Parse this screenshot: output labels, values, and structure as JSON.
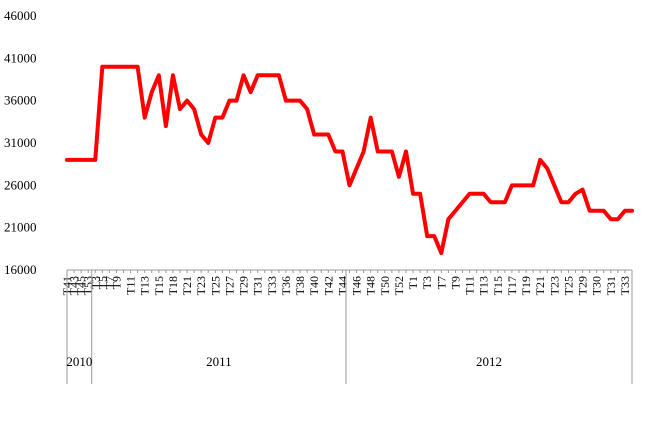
{
  "chart_data": {
    "type": "line",
    "title": "",
    "xlabel": "",
    "ylabel": "",
    "ylim": [
      16000,
      46000
    ],
    "yticks": [
      16000,
      21000,
      26000,
      31000,
      36000,
      41000,
      46000
    ],
    "grid": false,
    "line_color": "#ff0000",
    "year_groups": [
      {
        "label": "2010",
        "start": 0,
        "end": 3
      },
      {
        "label": "2011",
        "start": 4,
        "end": 39
      },
      {
        "label": "2012",
        "start": 40,
        "end": 73
      }
    ],
    "x_tick_labels": [
      {
        "i": 0,
        "label": "T41"
      },
      {
        "i": 1,
        "label": "T43"
      },
      {
        "i": 2,
        "label": "T45"
      },
      {
        "i": 3,
        "label": "T53"
      },
      {
        "i": 4,
        "label": "T3"
      },
      {
        "i": 5,
        "label": "T5"
      },
      {
        "i": 6,
        "label": "T7"
      },
      {
        "i": 7,
        "label": "T9"
      },
      {
        "i": 9,
        "label": "T11"
      },
      {
        "i": 11,
        "label": "T13"
      },
      {
        "i": 13,
        "label": "T15"
      },
      {
        "i": 15,
        "label": "T18"
      },
      {
        "i": 17,
        "label": "T21"
      },
      {
        "i": 19,
        "label": "T23"
      },
      {
        "i": 21,
        "label": "T25"
      },
      {
        "i": 23,
        "label": "T27"
      },
      {
        "i": 25,
        "label": "T29"
      },
      {
        "i": 27,
        "label": "T31"
      },
      {
        "i": 29,
        "label": "T33"
      },
      {
        "i": 31,
        "label": "T36"
      },
      {
        "i": 33,
        "label": "T38"
      },
      {
        "i": 35,
        "label": "T40"
      },
      {
        "i": 37,
        "label": "T42"
      },
      {
        "i": 39,
        "label": "T44"
      },
      {
        "i": 41,
        "label": "T46"
      },
      {
        "i": 43,
        "label": "T48"
      },
      {
        "i": 45,
        "label": "T50"
      },
      {
        "i": 47,
        "label": "T52"
      },
      {
        "i": 49,
        "label": "T1"
      },
      {
        "i": 51,
        "label": "T3"
      },
      {
        "i": 53,
        "label": "T7"
      },
      {
        "i": 55,
        "label": "T9"
      },
      {
        "i": 57,
        "label": "T11"
      },
      {
        "i": 59,
        "label": "T13"
      },
      {
        "i": 61,
        "label": "T15"
      },
      {
        "i": 63,
        "label": "T17"
      },
      {
        "i": 65,
        "label": "T19"
      },
      {
        "i": 67,
        "label": "T21"
      },
      {
        "i": 69,
        "label": "T23"
      },
      {
        "i": 71,
        "label": "T25"
      },
      {
        "i": 73,
        "label": "T29"
      },
      {
        "i": 75,
        "label": "T30"
      },
      {
        "i": 77,
        "label": "T31"
      },
      {
        "i": 79,
        "label": "T33"
      }
    ],
    "series": [
      {
        "values": [
          29000,
          29000,
          29000,
          29000,
          29000,
          40000,
          40000,
          40000,
          40000,
          40000,
          40000,
          34000,
          37000,
          39000,
          33000,
          39000,
          35000,
          36000,
          35000,
          32000,
          31000,
          34000,
          34000,
          36000,
          36000,
          39000,
          37000,
          39000,
          39000,
          39000,
          39000,
          36000,
          36000,
          36000,
          35000,
          32000,
          32000,
          32000,
          30000,
          30000,
          26000,
          28000,
          30000,
          34000,
          30000,
          30000,
          30000,
          27000,
          30000,
          25000,
          25000,
          20000,
          20000,
          18000,
          22000,
          23000,
          24000,
          25000,
          25000,
          25000,
          24000,
          24000,
          24000,
          26000,
          26000,
          26000,
          26000,
          29000,
          28000,
          26000,
          24000,
          24000,
          25000,
          25500,
          23000,
          23000,
          23000,
          22000,
          22000,
          23000,
          23000
        ]
      }
    ]
  }
}
